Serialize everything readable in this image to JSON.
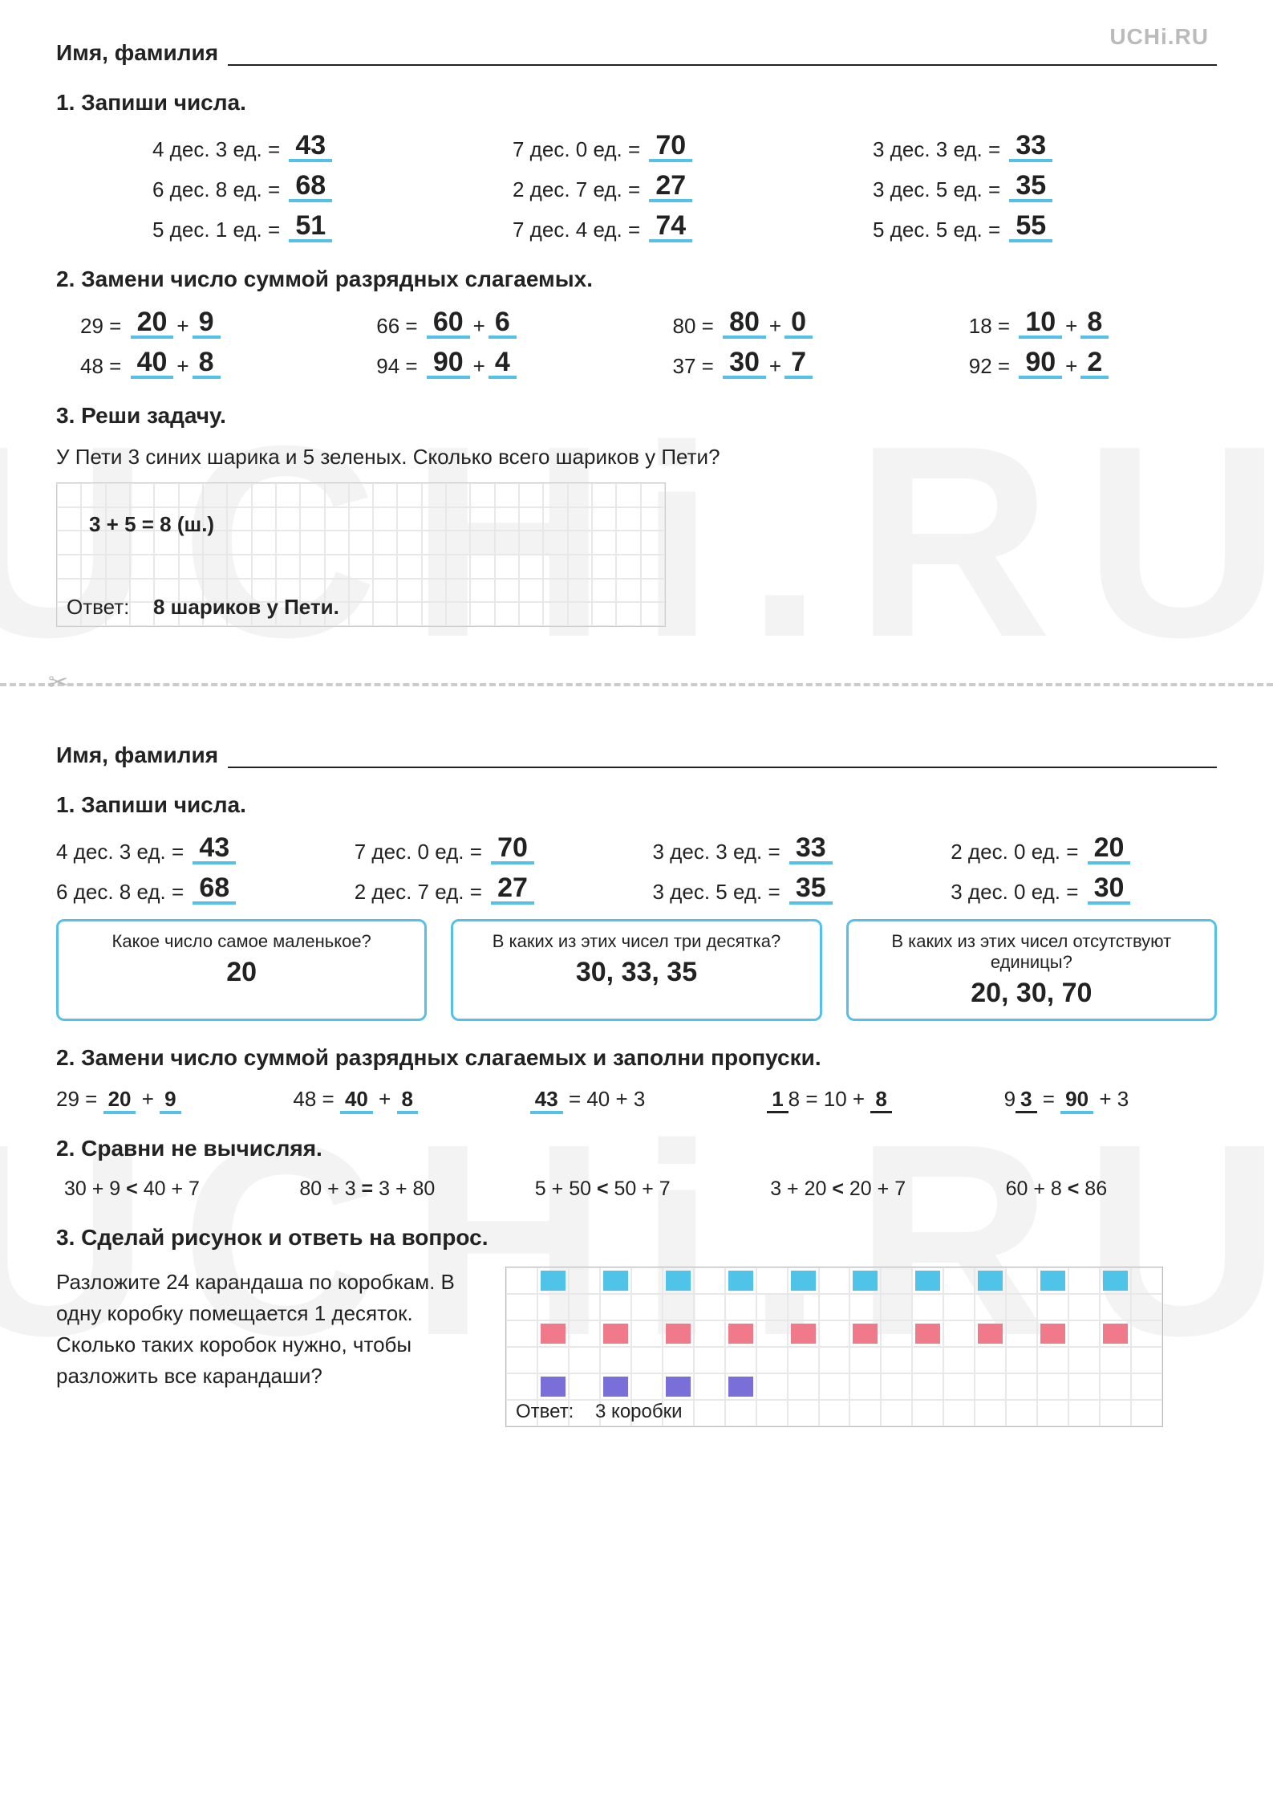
{
  "brand": "UCHi.RU",
  "watermark": "UCHi.RU",
  "nameLabel": "Имя, фамилия",
  "top": {
    "t1": {
      "title": "1. Запиши числа.",
      "items": [
        {
          "q": "4 дес. 3 ед. =",
          "a": "43"
        },
        {
          "q": "7 дес. 0 ед. =",
          "a": "70"
        },
        {
          "q": "3 дес. 3 ед. =",
          "a": "33"
        },
        {
          "q": "6 дес. 8 ед. =",
          "a": "68"
        },
        {
          "q": "2 дес. 7 ед. =",
          "a": "27"
        },
        {
          "q": "3 дес. 5 ед. =",
          "a": "35"
        },
        {
          "q": "5 дес. 1 ед. =",
          "a": "51"
        },
        {
          "q": "7 дес. 4 ед. =",
          "a": "74"
        },
        {
          "q": "5 дес. 5 ед. =",
          "a": "55"
        }
      ]
    },
    "t2": {
      "title": "2. Замени число суммой разрядных слагаемых.",
      "items": [
        {
          "n": "29",
          "a": "20",
          "b": "9"
        },
        {
          "n": "66",
          "a": "60",
          "b": "6"
        },
        {
          "n": "80",
          "a": "80",
          "b": "0"
        },
        {
          "n": "18",
          "a": "10",
          "b": "8"
        },
        {
          "n": "48",
          "a": "40",
          "b": "8"
        },
        {
          "n": "94",
          "a": "90",
          "b": "4"
        },
        {
          "n": "37",
          "a": "30",
          "b": "7"
        },
        {
          "n": "92",
          "a": "90",
          "b": "2"
        }
      ]
    },
    "t3": {
      "title": "3. Реши задачу.",
      "text": "У Пети 3 синих шарика и 5 зеленых. Сколько всего шариков у Пети?",
      "work": "3 + 5 = 8 (ш.)",
      "ansLabel": "Ответ:",
      "ans": "8 шариков у Пети."
    }
  },
  "bottom": {
    "t1": {
      "title": "1. Запиши числа.",
      "items": [
        {
          "q": "4 дес. 3 ед. =",
          "a": "43"
        },
        {
          "q": "7 дес. 0 ед. =",
          "a": "70"
        },
        {
          "q": "3 дес. 3 ед. =",
          "a": "33"
        },
        {
          "q": "2 дес. 0 ед. =",
          "a": "20"
        },
        {
          "q": "6 дес. 8 ед. =",
          "a": "68"
        },
        {
          "q": "2 дес. 7 ед. =",
          "a": "27"
        },
        {
          "q": "3 дес. 5 ед. =",
          "a": "35"
        },
        {
          "q": "3 дес. 0 ед. =",
          "a": "30"
        }
      ],
      "boxes": [
        {
          "q": "Какое число самое маленькое?",
          "a": "20"
        },
        {
          "q": "В каких из этих чисел три десятка?",
          "a": "30, 33, 35"
        },
        {
          "q": "В каких из этих чисел отсутствуют единицы?",
          "a": "20, 30, 70"
        }
      ]
    },
    "t2": {
      "title": "2. Замени число суммой разрядных слагаемых и заполни пропуски.",
      "items": [
        "29 = <u>20</u> + <u>9</u>",
        "48 = <u>40</u> + <u>8</u>",
        "<u>43</u> = 40 + 3",
        "<u2>1</u2>8 = 10 + <u2>8</u2>",
        "9<u2>3</u2> = <u>90</u> + 3"
      ]
    },
    "t2b": {
      "title": "2. Сравни не вычисляя.",
      "items": [
        "30 + 9 < 40 + 7",
        "80 + 3 = 3 + 80",
        "5 + 50 < 50 + 7",
        "3 + 20 < 20 + 7",
        "60 + 8 < 86"
      ]
    },
    "t3": {
      "title": "3. Сделай рисунок и ответь на вопрос.",
      "text": "Разложите 24 карандаша по коробкам. В одну коробку помещается 1 десяток. Сколько таких коробок нужно, чтобы разложить все карандаши?",
      "grid": {
        "cols": 20,
        "rows": 5,
        "squares": [
          {
            "r": 0,
            "c": 1,
            "color": "c-blue"
          },
          {
            "r": 0,
            "c": 3,
            "color": "c-blue"
          },
          {
            "r": 0,
            "c": 5,
            "color": "c-blue"
          },
          {
            "r": 0,
            "c": 7,
            "color": "c-blue"
          },
          {
            "r": 0,
            "c": 9,
            "color": "c-blue"
          },
          {
            "r": 0,
            "c": 11,
            "color": "c-blue"
          },
          {
            "r": 0,
            "c": 13,
            "color": "c-blue"
          },
          {
            "r": 0,
            "c": 15,
            "color": "c-blue"
          },
          {
            "r": 0,
            "c": 17,
            "color": "c-blue"
          },
          {
            "r": 0,
            "c": 19,
            "color": "c-blue"
          },
          {
            "r": 2,
            "c": 1,
            "color": "c-red"
          },
          {
            "r": 2,
            "c": 3,
            "color": "c-red"
          },
          {
            "r": 2,
            "c": 5,
            "color": "c-red"
          },
          {
            "r": 2,
            "c": 7,
            "color": "c-red"
          },
          {
            "r": 2,
            "c": 9,
            "color": "c-red"
          },
          {
            "r": 2,
            "c": 11,
            "color": "c-red"
          },
          {
            "r": 2,
            "c": 13,
            "color": "c-red"
          },
          {
            "r": 2,
            "c": 15,
            "color": "c-red"
          },
          {
            "r": 2,
            "c": 17,
            "color": "c-red"
          },
          {
            "r": 2,
            "c": 19,
            "color": "c-red"
          },
          {
            "r": 4,
            "c": 1,
            "color": "c-purple"
          },
          {
            "r": 4,
            "c": 3,
            "color": "c-purple"
          },
          {
            "r": 4,
            "c": 5,
            "color": "c-purple"
          },
          {
            "r": 4,
            "c": 7,
            "color": "c-purple"
          }
        ]
      },
      "ansLabel": "Ответ:",
      "ans": "3 коробки"
    }
  },
  "colors": {
    "underline": "#55c0e8",
    "boxBorder": "#55c0e8",
    "blue": "#4fc3e8",
    "red": "#f07a8a",
    "purple": "#7a6fd8"
  }
}
